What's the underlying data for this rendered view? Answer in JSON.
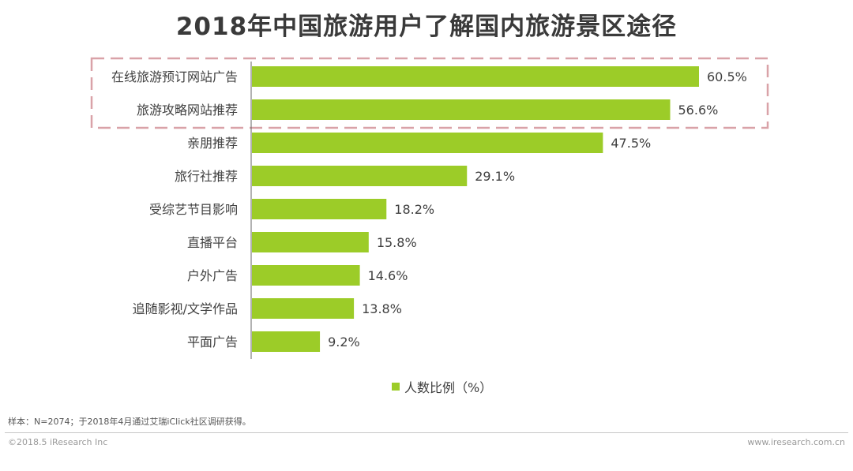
{
  "chart_data": {
    "type": "bar",
    "orientation": "horizontal",
    "title": "2018年中国旅游用户了解国内旅游景区途径",
    "categories": [
      "在线旅游预订网站广告",
      "旅游攻略网站推荐",
      "亲朋推荐",
      "旅行社推荐",
      "受综艺节目影响",
      "直播平台",
      "户外广告",
      "追随影视/文学作品",
      "平面广告"
    ],
    "values": [
      60.5,
      56.6,
      47.5,
      29.1,
      18.2,
      15.8,
      14.6,
      13.8,
      9.2
    ],
    "value_labels": [
      "60.5%",
      "56.6%",
      "47.5%",
      "29.1%",
      "18.2%",
      "15.8%",
      "14.6%",
      "13.8%",
      "9.2%"
    ],
    "series": [
      {
        "name": "人数比例（%）",
        "values": [
          60.5,
          56.6,
          47.5,
          29.1,
          18.2,
          15.8,
          14.6,
          13.8,
          9.2
        ]
      }
    ],
    "xlim": [
      0,
      60.5
    ],
    "highlighted_categories": [
      "在线旅游预订网站广告",
      "旅游攻略网站推荐"
    ],
    "legend": "bottom",
    "grid": false
  },
  "colors": {
    "bar": "#9ccc28",
    "highlight_border": "#d9a2a8",
    "axis": "#666666"
  },
  "legend_label": "人数比例（%）",
  "footnote": "样本：N=2074；于2018年4月通过艾瑞iClick社区调研获得。",
  "copyright": "©2018.5 iResearch Inc",
  "website": "www.iresearch.com.cn"
}
